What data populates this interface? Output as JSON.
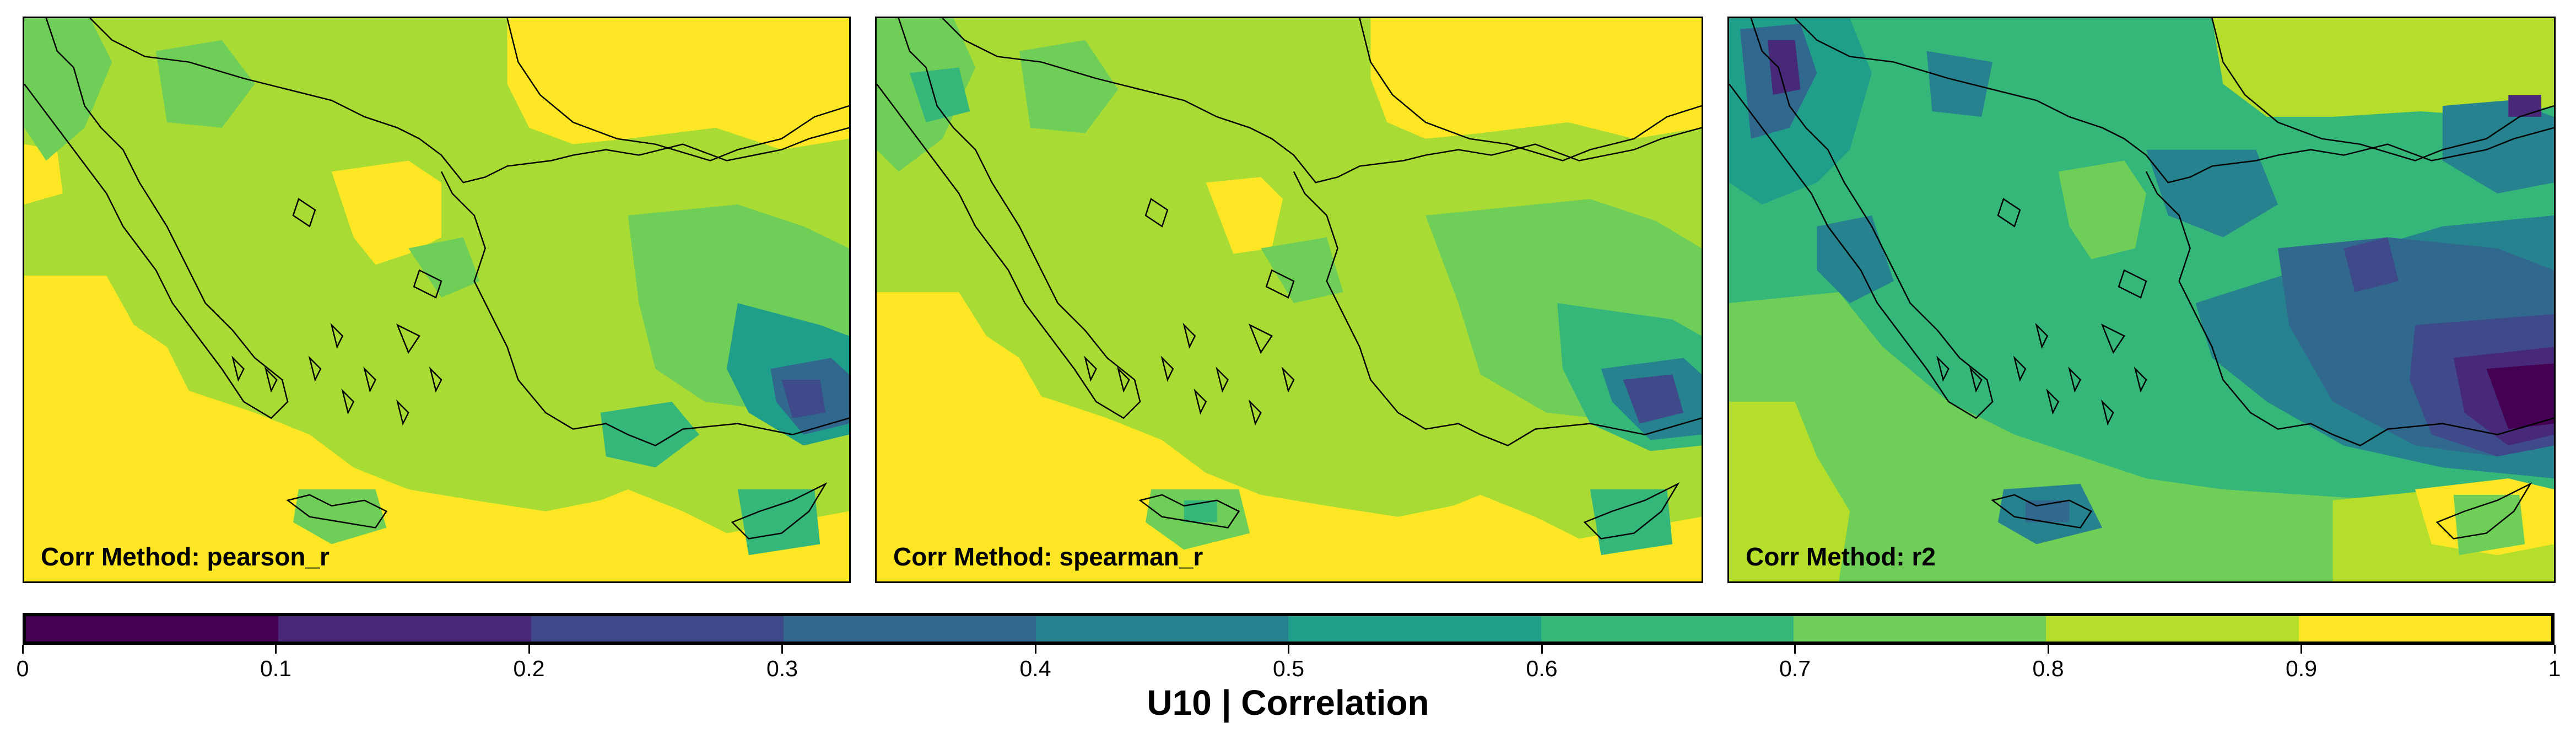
{
  "panels": [
    {
      "label": "Corr Method: pearson_r",
      "method": "pearson_r"
    },
    {
      "label": "Corr Method: spearman_r",
      "method": "spearman_r"
    },
    {
      "label": "Corr Method: r2",
      "method": "r2"
    }
  ],
  "colorbar": {
    "title": "U10 | Correlation",
    "ticks": [
      "0",
      "0.1",
      "0.2",
      "0.3",
      "0.4",
      "0.5",
      "0.6",
      "0.7",
      "0.8",
      "0.9",
      "1"
    ],
    "colors": [
      "#440154",
      "#482878",
      "#3e4a89",
      "#31688e",
      "#26828e",
      "#1f9e89",
      "#35b779",
      "#6ece58",
      "#b5de2b",
      "#fde725"
    ]
  },
  "map": {
    "region": "Eastern Mediterranean (Greece, Aegean, Turkey, Cyprus)",
    "coastline_color": "#000000"
  }
}
